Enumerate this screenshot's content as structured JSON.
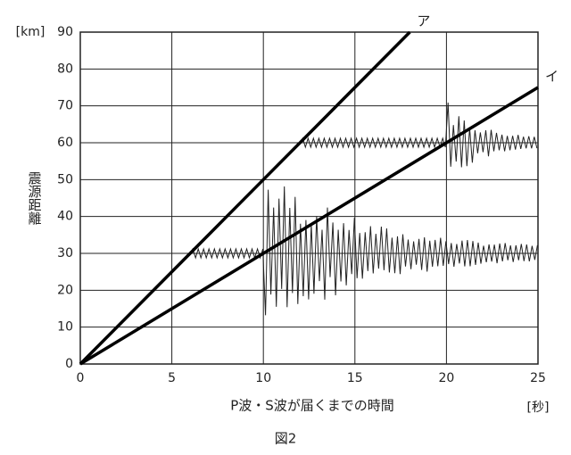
{
  "chart_data": {
    "type": "line",
    "y_label": "震源距離",
    "y_unit": "[km]",
    "x_label": "P波・S波が届くまでの時間",
    "x_unit": "[秒]",
    "caption": "図2",
    "xlim": [
      0,
      25
    ],
    "xticks": [
      0,
      5,
      10,
      15,
      20,
      25
    ],
    "ylim": [
      0,
      90
    ],
    "yticks": [
      0,
      10,
      20,
      30,
      40,
      50,
      60,
      70,
      80,
      90
    ],
    "grid": true,
    "series": [
      {
        "name": "ア",
        "color": "#000000",
        "x": [
          0,
          18
        ],
        "values": [
          0,
          90
        ]
      },
      {
        "name": "イ",
        "color": "#000000",
        "x": [
          0,
          25
        ],
        "values": [
          0,
          75
        ]
      }
    ],
    "seismograms": [
      {
        "baseline": 30,
        "start": 6,
        "s_arrival": 10,
        "end": 25
      },
      {
        "baseline": 60,
        "start": 12,
        "s_arrival": 20,
        "end": 25
      }
    ]
  }
}
